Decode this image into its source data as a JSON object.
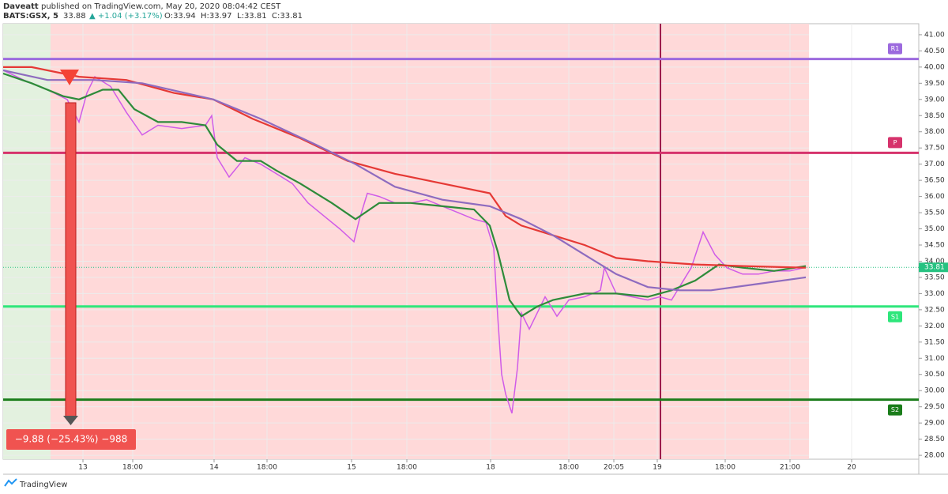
{
  "header": {
    "publisher": "Daveatt",
    "published_text": "published on TradingView.com, May 20, 2020 08:04:42 CEST",
    "symbol": "BATS:GSX, 5",
    "last": "33.88",
    "change": "▲ +1.04 (+3.17%)",
    "ohlc": [
      "O:33.94",
      "H:33.97",
      "L:33.81",
      "C:33.81"
    ]
  },
  "chart_data": {
    "type": "line",
    "xlim": [
      0,
      1159
    ],
    "ylim": [
      27.88,
      41.34
    ],
    "xticks": [
      {
        "value": 101,
        "label": "13"
      },
      {
        "value": 164,
        "label": "18:00"
      },
      {
        "value": 267,
        "label": "14"
      },
      {
        "value": 334,
        "label": "18:00"
      },
      {
        "value": 441,
        "label": "15"
      },
      {
        "value": 511,
        "label": "18:00"
      },
      {
        "value": 617,
        "label": "18"
      },
      {
        "value": 716,
        "label": "18:00"
      },
      {
        "value": 773,
        "label": "20:05"
      },
      {
        "value": 828,
        "label": "19"
      },
      {
        "value": 914,
        "label": "18:00"
      },
      {
        "value": 996,
        "label": "21:00"
      },
      {
        "value": 1074,
        "label": "20"
      }
    ],
    "yticks": [
      {
        "value": 28,
        "label": "28.00"
      },
      {
        "value": 28.5,
        "label": "28.50"
      },
      {
        "value": 29,
        "label": "29.00"
      },
      {
        "value": 29.5,
        "label": "29.50"
      },
      {
        "value": 30,
        "label": "30.00"
      },
      {
        "value": 30.5,
        "label": "30.50"
      },
      {
        "value": 31,
        "label": "31.00"
      },
      {
        "value": 31.5,
        "label": "31.50"
      },
      {
        "value": 32,
        "label": "32.00"
      },
      {
        "value": 32.5,
        "label": "32.50"
      },
      {
        "value": 33,
        "label": "33.00"
      },
      {
        "value": 33.5,
        "label": "33.50"
      },
      {
        "value": 34,
        "label": "34.00"
      },
      {
        "value": 34.5,
        "label": "34.50"
      },
      {
        "value": 35,
        "label": "35.00"
      },
      {
        "value": 35.5,
        "label": "35.50"
      },
      {
        "value": 36,
        "label": "36.00"
      },
      {
        "value": 36.5,
        "label": "36.50"
      },
      {
        "value": 37,
        "label": "37.00"
      },
      {
        "value": 37.5,
        "label": "37.50"
      },
      {
        "value": 38,
        "label": "38.00"
      },
      {
        "value": 38.5,
        "label": "38.50"
      },
      {
        "value": 39,
        "label": "39.00"
      },
      {
        "value": 39.5,
        "label": "39.50"
      },
      {
        "value": 40,
        "label": "40.00"
      },
      {
        "value": 40.5,
        "label": "40.50"
      },
      {
        "value": 41,
        "label": "41.00"
      }
    ],
    "grid": true,
    "series": [
      {
        "color": "#d05ce8",
        "x": [
          0,
          26,
          56,
          81,
          96,
          106,
          116,
          136,
          156,
          176,
          196,
          226,
          256,
          264,
          271,
          286,
          306,
          326,
          346,
          366,
          386,
          406,
          426,
          444,
          451,
          461,
          476,
          496,
          516,
          536,
          556,
          576,
          596,
          611,
          621,
          626,
          631,
          636,
          644,
          651,
          656,
          666,
          686,
          701,
          716,
          736,
          756,
          761,
          776,
          796,
          816,
          831,
          846,
          856,
          871,
          886,
          901,
          916,
          936,
          956,
          976,
          996,
          1016
        ],
        "values": [
          39.9,
          39.6,
          39.3,
          39.0,
          38.3,
          39.2,
          39.7,
          39.4,
          38.6,
          37.9,
          38.2,
          38.1,
          38.2,
          38.5,
          37.2,
          36.6,
          37.2,
          37.0,
          36.7,
          36.4,
          35.8,
          35.4,
          35.0,
          34.6,
          35.3,
          36.1,
          36.0,
          35.8,
          35.8,
          35.9,
          35.7,
          35.5,
          35.3,
          35.2,
          34.4,
          32.3,
          30.5,
          29.9,
          29.3,
          30.7,
          32.4,
          31.9,
          32.9,
          32.3,
          32.8,
          32.9,
          33.1,
          33.8,
          33.0,
          32.9,
          32.8,
          32.9,
          32.8,
          33.2,
          33.8,
          34.9,
          34.2,
          33.8,
          33.6,
          33.6,
          33.7,
          33.7,
          33.81
        ]
      },
      {
        "color": "#2e8b3a",
        "x": [
          0,
          36,
          76,
          96,
          126,
          146,
          166,
          196,
          226,
          256,
          271,
          296,
          326,
          346,
          376,
          416,
          446,
          476,
          516,
          556,
          596,
          616,
          626,
          641,
          656,
          676,
          696,
          736,
          776,
          816,
          846,
          876,
          906,
          936,
          976,
          1016
        ],
        "values": [
          39.8,
          39.5,
          39.1,
          39.0,
          39.3,
          39.3,
          38.7,
          38.3,
          38.3,
          38.2,
          37.6,
          37.1,
          37.1,
          36.8,
          36.4,
          35.8,
          35.3,
          35.8,
          35.8,
          35.7,
          35.6,
          35.1,
          34.3,
          32.8,
          32.3,
          32.6,
          32.8,
          33.0,
          33.0,
          32.9,
          33.1,
          33.4,
          33.9,
          33.8,
          33.7,
          33.85
        ]
      },
      {
        "color": "#e53935",
        "x": [
          0,
          36,
          96,
          156,
          216,
          266,
          316,
          376,
          436,
          496,
          556,
          616,
          636,
          656,
          696,
          736,
          776,
          816,
          876,
          936,
          1016
        ],
        "values": [
          40.0,
          40.0,
          39.7,
          39.6,
          39.2,
          39.0,
          38.4,
          37.8,
          37.1,
          36.7,
          36.4,
          36.1,
          35.4,
          35.1,
          34.8,
          34.5,
          34.1,
          34.0,
          33.9,
          33.85,
          33.8
        ]
      },
      {
        "color": "#8e6bbf",
        "x": [
          0,
          56,
          116,
          176,
          266,
          326,
          396,
          446,
          496,
          556,
          616,
          656,
          696,
          736,
          776,
          816,
          856,
          896,
          956,
          1016
        ],
        "values": [
          39.9,
          39.6,
          39.6,
          39.5,
          39.0,
          38.4,
          37.6,
          37.0,
          36.3,
          35.9,
          35.7,
          35.3,
          34.8,
          34.2,
          33.6,
          33.2,
          33.1,
          33.1,
          33.3,
          33.5
        ]
      }
    ],
    "levels": [
      {
        "label": "R1",
        "value": 40.25,
        "color": "#9c6ade"
      },
      {
        "label": "P",
        "value": 37.35,
        "color": "#d6336c"
      },
      {
        "label": "S1",
        "value": 32.6,
        "color": "#2ee67b"
      },
      {
        "label": "S2",
        "value": 29.72,
        "color": "#1b7d1b"
      }
    ],
    "price_label": {
      "value": 33.81,
      "label": "33.81"
    },
    "annotation": "−9.88 (−25.43%) −988"
  },
  "footer": {
    "brand": "TradingView"
  }
}
